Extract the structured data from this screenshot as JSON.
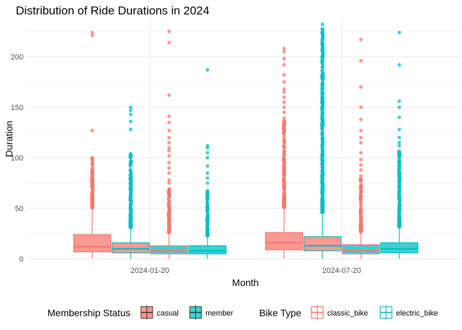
{
  "chart_data": {
    "type": "boxplot",
    "title": "Distribution of Ride Durations in 2024",
    "xlabel": "Month",
    "ylabel": "Duration",
    "ylim": [
      -3,
      235
    ],
    "yticks": [
      0,
      50,
      100,
      150,
      200
    ],
    "grid": true,
    "categories": [
      "2024-01-20",
      "2024-07-20"
    ],
    "legend_position": "bottom",
    "fill_legend": {
      "title": "Membership Status",
      "entries": [
        {
          "name": "casual",
          "color": "#F8766D"
        },
        {
          "name": "member",
          "color": "#00BFC4"
        }
      ]
    },
    "colour_legend": {
      "title": "Bike Type",
      "entries": [
        {
          "name": "classic_bike",
          "color": "#F8766D"
        },
        {
          "name": "electric_bike",
          "color": "#00BFC4"
        }
      ]
    },
    "boxes": [
      {
        "category": "2024-01-20",
        "membership": "casual",
        "bike_type": "classic_bike",
        "q1": 7,
        "median": 12,
        "q3": 24,
        "whisker_low": 0,
        "whisker_high": 50,
        "outliers_from": 51,
        "outliers_to": 100,
        "outliers": [
          50.5,
          51,
          52,
          53,
          60,
          61,
          62,
          63,
          75,
          76,
          80,
          85,
          86,
          87,
          88,
          89,
          95,
          100,
          127,
          221,
          224
        ]
      },
      {
        "category": "2024-01-20",
        "membership": "casual",
        "bike_type": "electric_bike",
        "q1": 6,
        "median": 10,
        "q3": 16,
        "whisker_low": 0,
        "whisker_high": 30,
        "outliers_from": 31,
        "outliers_to": 105,
        "outliers": [
          128,
          136,
          143,
          147,
          150
        ]
      },
      {
        "category": "2024-01-20",
        "membership": "member",
        "bike_type": "classic_bike",
        "q1": 5,
        "median": 8,
        "q3": 13,
        "whisker_low": 0,
        "whisker_high": 25,
        "outliers_from": 26,
        "outliers_to": 70,
        "outliers": [
          75,
          78,
          85,
          90,
          95,
          102,
          107,
          110,
          115,
          120,
          127,
          135,
          141,
          162,
          214,
          225
        ]
      },
      {
        "category": "2024-01-20",
        "membership": "member",
        "bike_type": "electric_bike",
        "q1": 5,
        "median": 8,
        "q3": 13,
        "whisker_low": 0,
        "whisker_high": 22,
        "outliers_from": 23,
        "outliers_to": 70,
        "outliers": [
          75,
          80,
          85,
          92,
          100,
          105,
          110,
          112,
          187
        ]
      },
      {
        "category": "2024-07-20",
        "membership": "casual",
        "bike_type": "classic_bike",
        "q1": 9,
        "median": 16,
        "q3": 26,
        "whisker_low": 0,
        "whisker_high": 50,
        "outliers_from": 51,
        "outliers_to": 140,
        "outliers": [
          145,
          150,
          155,
          160,
          165,
          168,
          175,
          182,
          192,
          198,
          205,
          208
        ]
      },
      {
        "category": "2024-07-20",
        "membership": "casual",
        "bike_type": "electric_bike",
        "q1": 8,
        "median": 13,
        "q3": 22,
        "whisker_low": 0,
        "whisker_high": 45,
        "outliers_from": 46,
        "outliers_to": 228,
        "outliers": [
          232
        ]
      },
      {
        "category": "2024-07-20",
        "membership": "member",
        "bike_type": "classic_bike",
        "q1": 5,
        "median": 8,
        "q3": 14,
        "whisker_low": 0,
        "whisker_high": 26,
        "outliers_from": 27,
        "outliers_to": 80,
        "outliers": [
          82,
          88,
          93,
          98,
          105,
          115,
          120,
          127,
          138,
          150,
          170,
          196,
          217
        ]
      },
      {
        "category": "2024-07-20",
        "membership": "member",
        "bike_type": "electric_bike",
        "q1": 6,
        "median": 10,
        "q3": 16,
        "whisker_low": 0,
        "whisker_high": 31,
        "outliers_from": 32,
        "outliers_to": 108,
        "outliers": [
          112,
          115,
          120,
          128,
          140,
          150,
          156,
          192,
          224
        ]
      }
    ]
  }
}
